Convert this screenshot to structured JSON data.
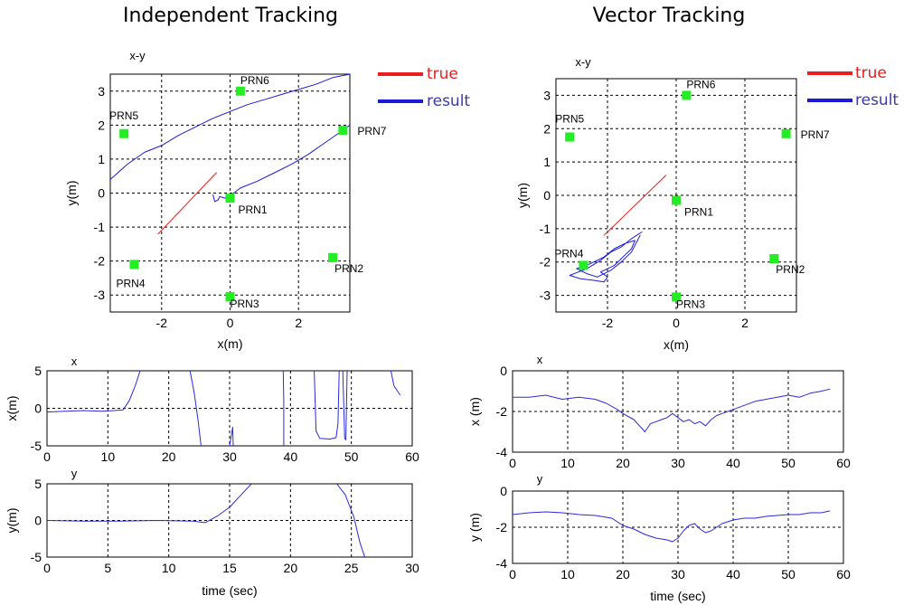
{
  "colors": {
    "true": "#ee1c1c",
    "result": "#1a1adc",
    "ts_line": "#2a2ae0",
    "satellite": "#22ee22",
    "legend_true_text": "#e02020",
    "legend_result_text": "#3a3aa8"
  },
  "panels": {
    "left": {
      "title": "Independent Tracking"
    },
    "right": {
      "title": "Vector Tracking"
    }
  },
  "legend": {
    "true_label": "true",
    "result_label": "result"
  },
  "chart_data": [
    {
      "id": "ind-xy",
      "type": "line",
      "title": "x-y",
      "xlabel": "x(m)",
      "ylabel": "y(m)",
      "xlim": [
        -3.5,
        3.5
      ],
      "ylim": [
        -3.5,
        3.5
      ],
      "xticks": [
        -2,
        0,
        2
      ],
      "yticks": [
        -3,
        -2,
        -1,
        0,
        1,
        2,
        3
      ],
      "grid": true,
      "legend": "outside-right",
      "satellites": [
        {
          "name": "PRN1",
          "x": 0.0,
          "y": -0.15
        },
        {
          "name": "PRN2",
          "x": 3.0,
          "y": -1.9
        },
        {
          "name": "PRN3",
          "x": 0.0,
          "y": -3.05
        },
        {
          "name": "PRN4",
          "x": -2.8,
          "y": -2.1
        },
        {
          "name": "PRN5",
          "x": -3.1,
          "y": 1.75
        },
        {
          "name": "PRN6",
          "x": 0.3,
          "y": 3.0
        },
        {
          "name": "PRN7",
          "x": 3.3,
          "y": 1.85
        }
      ],
      "series": [
        {
          "name": "true",
          "points": [
            [
              -2.1,
              -1.2
            ],
            [
              -0.4,
              0.6
            ]
          ]
        },
        {
          "name": "result",
          "segments": [
            [
              [
                -0.5,
                -0.05
              ],
              [
                -0.45,
                -0.25
              ],
              [
                -0.35,
                -0.2
              ],
              [
                -0.3,
                -0.1
              ],
              [
                -0.15,
                -0.15
              ],
              [
                -0.05,
                -0.12
              ],
              [
                0.3,
                0.15
              ],
              [
                0.8,
                0.35
              ],
              [
                1.3,
                0.6
              ],
              [
                1.8,
                0.85
              ],
              [
                2.3,
                1.15
              ],
              [
                2.8,
                1.5
              ],
              [
                3.3,
                1.85
              ],
              [
                3.5,
                2.0
              ]
            ],
            [
              [
                -3.5,
                0.4
              ],
              [
                -3.0,
                0.85
              ],
              [
                -2.5,
                1.2
              ],
              [
                -2.0,
                1.4
              ],
              [
                -1.5,
                1.7
              ],
              [
                -1.0,
                1.95
              ],
              [
                -0.5,
                2.2
              ],
              [
                0.0,
                2.4
              ],
              [
                0.5,
                2.6
              ],
              [
                1.0,
                2.75
              ],
              [
                1.5,
                2.9
              ],
              [
                2.0,
                3.05
              ],
              [
                2.5,
                3.2
              ],
              [
                3.0,
                3.4
              ],
              [
                3.5,
                3.5
              ]
            ]
          ]
        }
      ]
    },
    {
      "id": "vec-xy",
      "type": "line",
      "title": "x-y",
      "xlabel": "x(m)",
      "ylabel": "y(m)",
      "xlim": [
        -3.5,
        3.5
      ],
      "ylim": [
        -3.5,
        3.5
      ],
      "xticks": [
        -2,
        0,
        2
      ],
      "yticks": [
        -3,
        -2,
        -1,
        0,
        1,
        2,
        3
      ],
      "grid": true,
      "legend": "outside-right",
      "satellites": [
        {
          "name": "PRN1",
          "x": 0.0,
          "y": -0.15
        },
        {
          "name": "PRN2",
          "x": 2.85,
          "y": -1.9
        },
        {
          "name": "PRN3",
          "x": 0.0,
          "y": -3.05
        },
        {
          "name": "PRN4",
          "x": -2.7,
          "y": -2.1
        },
        {
          "name": "PRN5",
          "x": -3.1,
          "y": 1.75
        },
        {
          "name": "PRN6",
          "x": 0.3,
          "y": 3.0
        },
        {
          "name": "PRN7",
          "x": 3.2,
          "y": 1.85
        }
      ],
      "series": [
        {
          "name": "true",
          "points": [
            [
              -2.1,
              -1.2
            ],
            [
              -0.3,
              0.6
            ]
          ]
        },
        {
          "name": "result",
          "segments": [
            [
              [
                -1.0,
                -1.1
              ],
              [
                -1.3,
                -1.3
              ],
              [
                -1.6,
                -1.55
              ],
              [
                -1.9,
                -1.7
              ],
              [
                -2.2,
                -1.95
              ],
              [
                -2.6,
                -2.2
              ],
              [
                -3.1,
                -2.4
              ],
              [
                -2.8,
                -2.5
              ],
              [
                -2.4,
                -2.55
              ],
              [
                -2.1,
                -2.6
              ],
              [
                -2.0,
                -2.45
              ],
              [
                -2.2,
                -2.3
              ],
              [
                -1.8,
                -2.1
              ],
              [
                -1.5,
                -1.8
              ],
              [
                -1.3,
                -1.6
              ],
              [
                -1.2,
                -1.35
              ],
              [
                -1.5,
                -1.45
              ],
              [
                -1.8,
                -1.6
              ],
              [
                -2.1,
                -1.85
              ],
              [
                -2.5,
                -2.05
              ],
              [
                -2.9,
                -2.2
              ],
              [
                -2.6,
                -2.35
              ],
              [
                -2.3,
                -2.45
              ],
              [
                -1.9,
                -2.25
              ],
              [
                -1.6,
                -2.0
              ],
              [
                -1.3,
                -1.7
              ],
              [
                -1.05,
                -1.2
              ]
            ]
          ]
        }
      ]
    },
    {
      "id": "ind-x",
      "type": "line",
      "title": "x",
      "xlabel": "",
      "ylabel": "x(m)",
      "xlim": [
        0,
        60
      ],
      "ylim": [
        -5,
        5
      ],
      "xticks": [
        0,
        10,
        20,
        30,
        40,
        50,
        60
      ],
      "yticks": [
        -5,
        0,
        5
      ],
      "grid": true,
      "series": [
        {
          "name": "x",
          "segments": [
            [
              [
                0,
                -0.5
              ],
              [
                3,
                -0.4
              ],
              [
                6,
                -0.3
              ],
              [
                9,
                -0.4
              ],
              [
                11,
                -0.3
              ],
              [
                12.5,
                -0.2
              ],
              [
                13.5,
                1.0
              ],
              [
                14.5,
                3.0
              ],
              [
                15.3,
                5.0
              ]
            ],
            [
              [
                23.5,
                5.0
              ],
              [
                24.2,
                2.0
              ],
              [
                24.8,
                -1.5
              ],
              [
                25.3,
                -5.0
              ]
            ],
            [
              [
                30.0,
                -5.0
              ],
              [
                30.5,
                -2.5
              ],
              [
                30.6,
                -5.0
              ]
            ],
            [
              [
                38.8,
                5.0
              ],
              [
                38.9,
                1.0
              ],
              [
                38.9,
                -5.0
              ]
            ],
            [
              [
                43.9,
                5.0
              ],
              [
                44.2,
                -3.0
              ],
              [
                44.8,
                -4.0
              ],
              [
                46.5,
                -4.1
              ],
              [
                47.5,
                -3.9
              ],
              [
                47.8,
                -2.0
              ],
              [
                48.0,
                5.0
              ]
            ],
            [
              [
                48.6,
                5.0
              ],
              [
                48.9,
                -4.0
              ],
              [
                49.1,
                -4.2
              ],
              [
                49.3,
                5.0
              ]
            ],
            [
              [
                56.5,
                5.0
              ],
              [
                57.0,
                3.0
              ],
              [
                58.0,
                1.8
              ]
            ]
          ]
        }
      ]
    },
    {
      "id": "ind-y",
      "type": "line",
      "title": "y",
      "xlabel": "time (sec)",
      "ylabel": "y(m)",
      "xlim": [
        0,
        30
      ],
      "ylim": [
        -5,
        5
      ],
      "xticks": [
        0,
        5,
        10,
        15,
        20,
        25,
        30
      ],
      "yticks": [
        -5,
        0,
        5
      ],
      "grid": true,
      "series": [
        {
          "name": "y",
          "segments": [
            [
              [
                0,
                0.0
              ],
              [
                3,
                -0.1
              ],
              [
                6,
                -0.1
              ],
              [
                9,
                0.0
              ],
              [
                12,
                -0.1
              ],
              [
                13,
                -0.3
              ],
              [
                14,
                0.6
              ],
              [
                15,
                1.8
              ],
              [
                16,
                3.6
              ],
              [
                16.8,
                5.0
              ]
            ],
            [
              [
                23.8,
                5.0
              ],
              [
                24.5,
                3.5
              ],
              [
                25.2,
                0.5
              ],
              [
                25.7,
                -3.0
              ],
              [
                26.1,
                -5.0
              ]
            ]
          ]
        }
      ]
    },
    {
      "id": "vec-x",
      "type": "line",
      "title": "x",
      "xlabel": "",
      "ylabel": "x (m)",
      "xlim": [
        0,
        60
      ],
      "ylim": [
        -4,
        0
      ],
      "xticks": [
        0,
        10,
        20,
        30,
        40,
        50,
        60
      ],
      "yticks": [
        -4,
        -2,
        0
      ],
      "grid": true,
      "series": [
        {
          "name": "x",
          "points": [
            [
              0,
              -1.3
            ],
            [
              3,
              -1.3
            ],
            [
              6,
              -1.2
            ],
            [
              9,
              -1.4
            ],
            [
              12,
              -1.3
            ],
            [
              15,
              -1.4
            ],
            [
              17,
              -1.6
            ],
            [
              19,
              -1.9
            ],
            [
              20,
              -2.1
            ],
            [
              22,
              -2.4
            ],
            [
              23,
              -2.7
            ],
            [
              24,
              -3.0
            ],
            [
              25,
              -2.6
            ],
            [
              26,
              -2.5
            ],
            [
              27,
              -2.4
            ],
            [
              28,
              -2.3
            ],
            [
              29,
              -2.1
            ],
            [
              30,
              -2.3
            ],
            [
              31,
              -2.5
            ],
            [
              32,
              -2.4
            ],
            [
              33,
              -2.6
            ],
            [
              34,
              -2.5
            ],
            [
              35,
              -2.7
            ],
            [
              36,
              -2.4
            ],
            [
              37,
              -2.2
            ],
            [
              38,
              -2.1
            ],
            [
              40,
              -1.9
            ],
            [
              42,
              -1.7
            ],
            [
              44,
              -1.5
            ],
            [
              46,
              -1.4
            ],
            [
              48,
              -1.3
            ],
            [
              50,
              -1.2
            ],
            [
              52,
              -1.3
            ],
            [
              54,
              -1.1
            ],
            [
              56,
              -1.0
            ],
            [
              57.5,
              -0.9
            ]
          ]
        }
      ]
    },
    {
      "id": "vec-y",
      "type": "line",
      "title": "y",
      "xlabel": "time (sec)",
      "ylabel": "y (m)",
      "xlim": [
        0,
        60
      ],
      "ylim": [
        -4,
        0
      ],
      "xticks": [
        0,
        10,
        20,
        30,
        40,
        50,
        60
      ],
      "yticks": [
        -4,
        -2,
        0
      ],
      "grid": true,
      "series": [
        {
          "name": "y",
          "points": [
            [
              0,
              -1.3
            ],
            [
              3,
              -1.2
            ],
            [
              6,
              -1.15
            ],
            [
              9,
              -1.2
            ],
            [
              12,
              -1.3
            ],
            [
              15,
              -1.35
            ],
            [
              18,
              -1.5
            ],
            [
              20,
              -1.9
            ],
            [
              22,
              -2.1
            ],
            [
              24,
              -2.4
            ],
            [
              26,
              -2.6
            ],
            [
              28,
              -2.7
            ],
            [
              29,
              -2.8
            ],
            [
              30,
              -2.6
            ],
            [
              31,
              -2.2
            ],
            [
              32,
              -1.9
            ],
            [
              33,
              -1.8
            ],
            [
              34,
              -2.1
            ],
            [
              35,
              -2.3
            ],
            [
              36,
              -2.2
            ],
            [
              37,
              -2.0
            ],
            [
              38,
              -1.8
            ],
            [
              40,
              -1.6
            ],
            [
              42,
              -1.5
            ],
            [
              44,
              -1.5
            ],
            [
              46,
              -1.4
            ],
            [
              48,
              -1.35
            ],
            [
              50,
              -1.3
            ],
            [
              52,
              -1.3
            ],
            [
              54,
              -1.2
            ],
            [
              56,
              -1.2
            ],
            [
              57.5,
              -1.1
            ]
          ]
        }
      ]
    }
  ]
}
